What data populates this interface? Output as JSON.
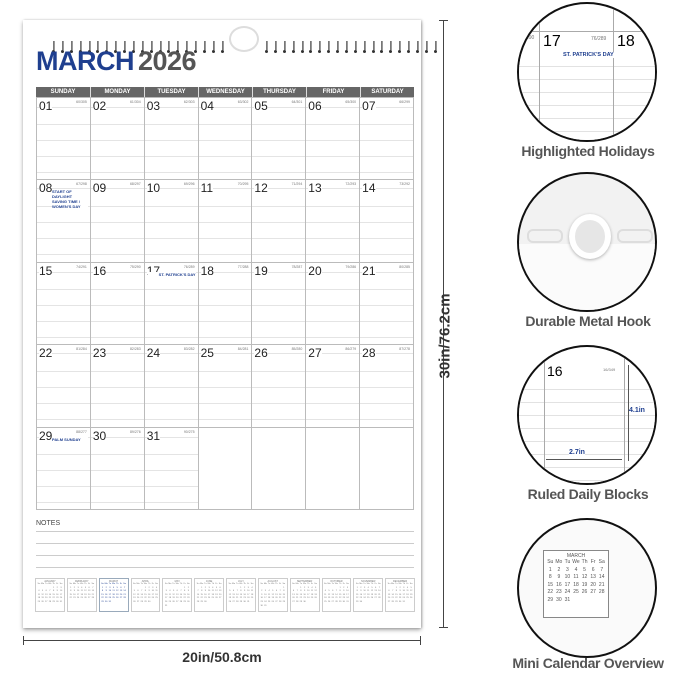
{
  "calendar": {
    "month": "MARCH",
    "year": "2026",
    "weekdays": [
      "SUNDAY",
      "MONDAY",
      "TUESDAY",
      "WEDNESDAY",
      "THURSDAY",
      "FRIDAY",
      "SATURDAY"
    ],
    "first_weekday": 0,
    "days_in_month": 31,
    "day_of_year_start": 60,
    "days_in_year": 365,
    "holidays": {
      "8": "START OF DAYLIGHT SAVING TIME / WOMEN'S DAY",
      "17": "ST. PATRICK'S DAY",
      "29": "PALM SUNDAY"
    },
    "accent_color": "#1f3f8f",
    "notes_label": "NOTES",
    "mini_weekdays": [
      "Su",
      "Mo",
      "Tu",
      "We",
      "Th",
      "Fr",
      "Sa"
    ],
    "mini_months": [
      {
        "name": "JANUARY",
        "start": 4,
        "days": 31
      },
      {
        "name": "FEBRUARY",
        "start": 0,
        "days": 28
      },
      {
        "name": "MARCH",
        "start": 0,
        "days": 31
      },
      {
        "name": "APRIL",
        "start": 3,
        "days": 30
      },
      {
        "name": "MAY",
        "start": 5,
        "days": 31
      },
      {
        "name": "JUNE",
        "start": 1,
        "days": 30
      },
      {
        "name": "JULY",
        "start": 3,
        "days": 31
      },
      {
        "name": "AUGUST",
        "start": 6,
        "days": 31
      },
      {
        "name": "SEPTEMBER",
        "start": 2,
        "days": 30
      },
      {
        "name": "OCTOBER",
        "start": 4,
        "days": 31
      },
      {
        "name": "NOVEMBER",
        "start": 0,
        "days": 30
      },
      {
        "name": "DECEMBER",
        "start": 2,
        "days": 31
      }
    ]
  },
  "dimensions": {
    "height": "30in/76.2cm",
    "width": "20in/50.8cm"
  },
  "features": [
    {
      "label": "Highlighted Holidays",
      "day_a": "17",
      "doy_a": "76/289",
      "holiday": "ST. PATRICK'S DAY",
      "day_b": "18",
      "doy_prev": "75/290"
    },
    {
      "label": "Durable Metal Hook"
    },
    {
      "label": "Ruled Daily Blocks",
      "day": "16",
      "doy": "16/349",
      "height": "4.1in",
      "width": "2.7in"
    },
    {
      "label": "Mini Calendar Overview",
      "month": "MARCH"
    }
  ]
}
